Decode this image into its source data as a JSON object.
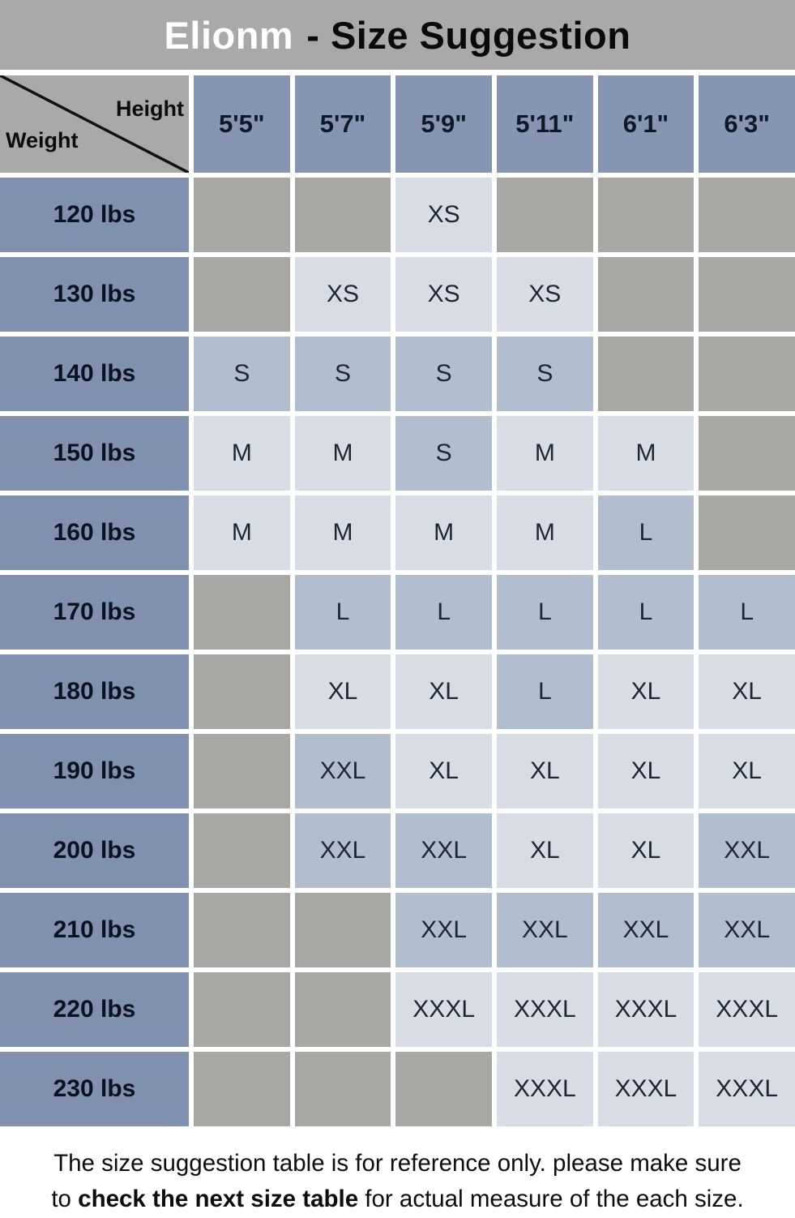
{
  "title": {
    "brand": "Elionm",
    "suffix": "- Size Suggestion"
  },
  "colors": {
    "title_bg": "#a9a9a9",
    "header_blue": "#8695b2",
    "weight_blue": "#7f91af",
    "empty_gray": "#a8a7a3",
    "cell_medium_blue": "#b1becf",
    "cell_light_blue": "#d8dce4",
    "brand_text": "#ffffff",
    "title_text": "#0a0a0a"
  },
  "table": {
    "corner": {
      "height_label": "Height",
      "weight_label": "Weight"
    },
    "heights": [
      "5'5\"",
      "5'7\"",
      "5'9\"",
      "5'11\"",
      "6'1\"",
      "6'3\""
    ],
    "medium_tone_sizes": [
      "S",
      "L",
      "XXL"
    ],
    "rows": [
      {
        "weight": "120 lbs",
        "cells": [
          "",
          "",
          "XS",
          "",
          "",
          ""
        ]
      },
      {
        "weight": "130 lbs",
        "cells": [
          "",
          "XS",
          "XS",
          "XS",
          "",
          ""
        ]
      },
      {
        "weight": "140 lbs",
        "cells": [
          "S",
          "S",
          "S",
          "S",
          "",
          ""
        ]
      },
      {
        "weight": "150 lbs",
        "cells": [
          "M",
          "M",
          "S",
          "M",
          "M",
          ""
        ]
      },
      {
        "weight": "160 lbs",
        "cells": [
          "M",
          "M",
          "M",
          "M",
          "L",
          ""
        ]
      },
      {
        "weight": "170 lbs",
        "cells": [
          "",
          "L",
          "L",
          "L",
          "L",
          "L"
        ]
      },
      {
        "weight": "180 lbs",
        "cells": [
          "",
          "XL",
          "XL",
          "L",
          "XL",
          "XL"
        ]
      },
      {
        "weight": "190 lbs",
        "cells": [
          "",
          "XXL",
          "XL",
          "XL",
          "XL",
          "XL"
        ]
      },
      {
        "weight": "200 lbs",
        "cells": [
          "",
          "XXL",
          "XXL",
          "XL",
          "XL",
          "XXL"
        ]
      },
      {
        "weight": "210 lbs",
        "cells": [
          "",
          "",
          "XXL",
          "XXL",
          "XXL",
          "XXL"
        ]
      },
      {
        "weight": "220 lbs",
        "cells": [
          "",
          "",
          "XXXL",
          "XXXL",
          "XXXL",
          "XXXL"
        ]
      },
      {
        "weight": "230 lbs",
        "cells": [
          "",
          "",
          "",
          "XXXL",
          "XXXL",
          "XXXL"
        ]
      }
    ]
  },
  "footnote": {
    "line1": "The size suggestion table is for reference only. please make sure",
    "line2_before": "to ",
    "line2_bold": "check the next size table",
    "line2_after": " for actual measure of the each size."
  }
}
